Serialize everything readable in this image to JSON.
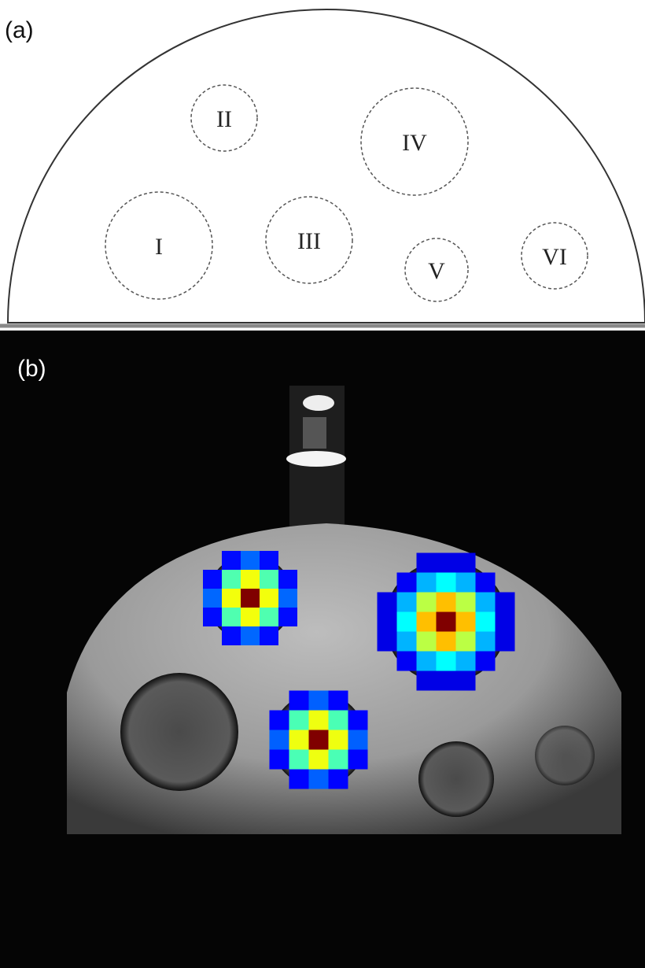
{
  "panels": [
    {
      "label": "(a)"
    },
    {
      "label": "(b)"
    }
  ],
  "regions": [
    {
      "label": "I"
    },
    {
      "label": "II"
    },
    {
      "label": "III"
    },
    {
      "label": "IV"
    },
    {
      "label": "V"
    },
    {
      "label": "VI"
    }
  ]
}
